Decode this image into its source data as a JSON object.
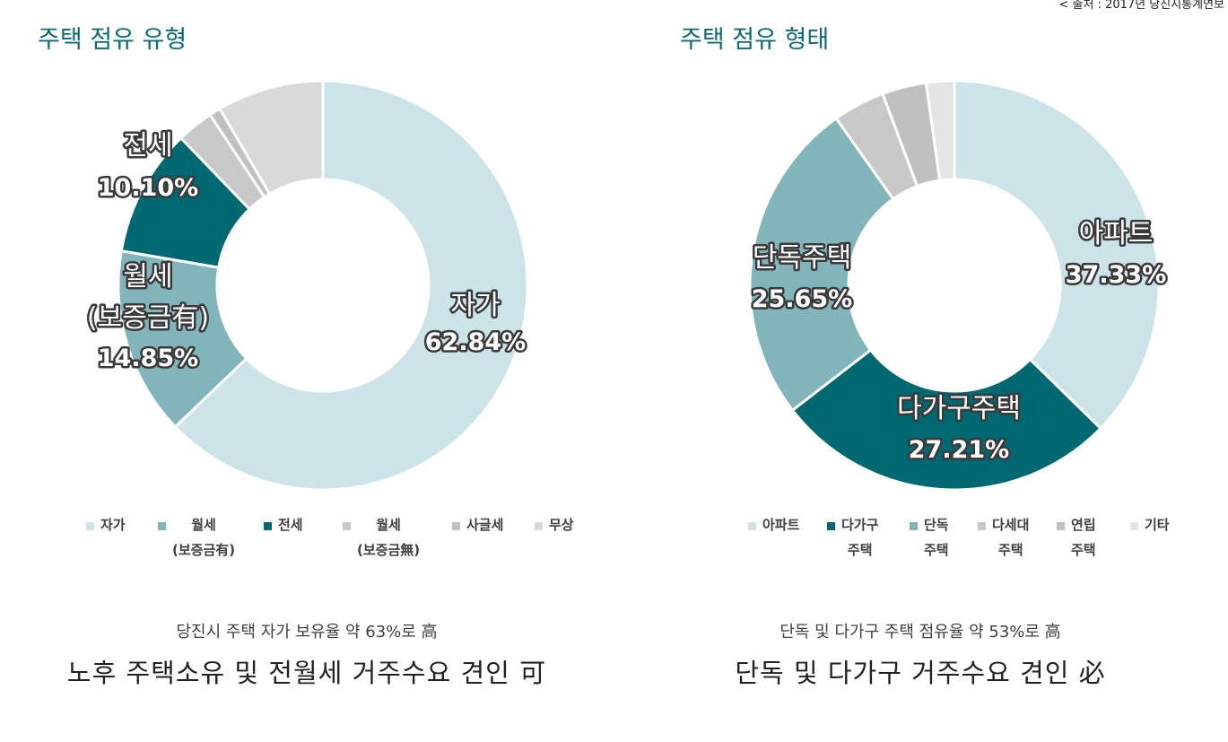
{
  "source_note": "< 출처 : 2017년 당진시통계연보",
  "charts": [
    {
      "title": "주택 점유 유형",
      "chart_data": {
        "type": "pie",
        "title": "주택 점유 유형",
        "slices": [
          {
            "name": "자가",
            "value": 62.84,
            "label_pct": "62.84%",
            "color": "#cce3e7"
          },
          {
            "name": "월세\n(보증금有)",
            "value": 14.85,
            "label_pct": "14.85%",
            "color": "#82b4bb"
          },
          {
            "name": "전세",
            "value": 10.1,
            "label_pct": "10.10%",
            "color": "#006870"
          },
          {
            "name": "월세\n(보증금無)",
            "value": 2.9,
            "label_pct": "",
            "color": "#c8c8c8"
          },
          {
            "name": "사글세",
            "value": 0.9,
            "label_pct": "",
            "color": "#c0c0c0"
          },
          {
            "name": "무상",
            "value": 8.41,
            "label_pct": "",
            "color": "#d9d9d9"
          }
        ]
      },
      "summary_sub": "당진시 주택 자가 보유율 약 63%로 高",
      "summary_main": "노후 주택소유 및 전월세 거주수요 견인 可"
    },
    {
      "title": "주택 점유 형태",
      "chart_data": {
        "type": "pie",
        "title": "주택 점유 형태",
        "slices": [
          {
            "name": "아파트",
            "value": 37.33,
            "label_pct": "37.33%",
            "color": "#cce3e7"
          },
          {
            "name": "다가구\n주택",
            "value": 27.21,
            "label_pct": "27.21%",
            "color": "#006870"
          },
          {
            "name": "단독\n주택",
            "value": 25.65,
            "label_pct": "25.65%",
            "color": "#82b4bb"
          },
          {
            "name": "다세대\n주택",
            "value": 4.1,
            "label_pct": "",
            "color": "#c8c8c8"
          },
          {
            "name": "연립\n주택",
            "value": 3.5,
            "label_pct": "",
            "color": "#c0c0c0"
          },
          {
            "name": "기타",
            "value": 2.21,
            "label_pct": "",
            "color": "#e5e5e5"
          }
        ]
      },
      "summary_sub": "단독 및 다가구 주택 점유율 약 53%로 高",
      "summary_main": "단독 및 다가구 거주수요 견인 必"
    }
  ],
  "slice_labels": [
    [
      {
        "slice": 0,
        "name": "자가"
      },
      {
        "slice": 1,
        "name": "월세\n(보증금有)"
      },
      {
        "slice": 2,
        "name": "전세"
      }
    ],
    [
      {
        "slice": 0,
        "name": "아파트"
      },
      {
        "slice": 1,
        "name": "다가구주택"
      },
      {
        "slice": 2,
        "name": "단독주택"
      }
    ]
  ]
}
